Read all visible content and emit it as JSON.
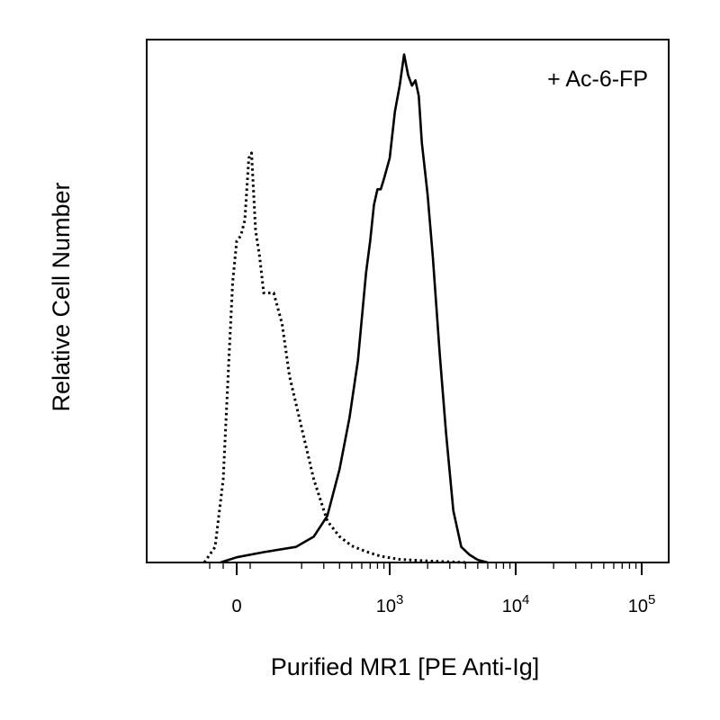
{
  "chart_data": {
    "type": "line",
    "chart_kind": "flow cytometry histogram",
    "xlabel": "Purified MR1 [PE Anti-Ig]",
    "ylabel": "Relative Cell Number",
    "annotation": "+ Ac-6-FP",
    "x_scale": "biexponential (linear near 0, log above)",
    "xlim": [
      -150,
      200000
    ],
    "ylim": [
      0,
      100
    ],
    "x_tick_labels": [
      {
        "value": 0,
        "base": "0",
        "exp": ""
      },
      {
        "value": 1000,
        "base": "10",
        "exp": "3"
      },
      {
        "value": 10000,
        "base": "10",
        "exp": "4"
      },
      {
        "value": 100000,
        "base": "10",
        "exp": "5"
      }
    ],
    "grid": false,
    "legend": "none",
    "series": [
      {
        "style": "dotted",
        "x": [
          -120,
          -80,
          -50,
          -30,
          -15,
          0,
          15,
          30,
          45,
          55,
          70,
          85,
          100,
          120,
          140,
          160,
          200,
          250,
          320,
          400,
          500,
          650,
          850,
          1200,
          2000,
          4000
        ],
        "y": [
          0,
          3,
          16,
          38,
          54,
          62,
          63,
          66,
          78,
          79,
          64,
          59,
          52,
          52,
          46,
          36,
          26,
          16,
          8,
          5,
          3.2,
          2.1,
          1.2,
          0.6,
          0.3,
          0
        ]
      },
      {
        "style": "solid",
        "x": [
          -60,
          0,
          100,
          180,
          250,
          320,
          400,
          480,
          560,
          650,
          700,
          750,
          800,
          850,
          900,
          1000,
          1100,
          1200,
          1300,
          1400,
          1500,
          1600,
          1700,
          1800,
          2000,
          2200,
          2500,
          2800,
          3200,
          3700,
          4300,
          5000,
          6000
        ],
        "y": [
          0,
          1,
          2,
          3,
          5,
          9,
          18,
          28,
          39,
          56,
          62,
          69,
          72,
          72,
          74,
          78,
          87,
          92,
          98,
          94,
          92,
          93,
          90,
          81,
          71,
          59,
          40,
          25,
          10,
          3,
          1.5,
          0.5,
          0
        ]
      }
    ]
  }
}
